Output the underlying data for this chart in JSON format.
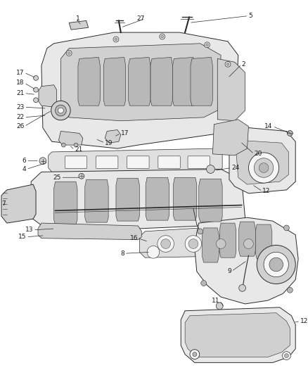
{
  "bg_color": "#ffffff",
  "fig_width": 4.38,
  "fig_height": 5.33,
  "dpi": 100,
  "line_color": "#2a2a2a",
  "text_color": "#1a1a1a",
  "font_size": 6.5,
  "fill_light": "#e8e8e8",
  "fill_mid": "#d0d0d0",
  "fill_dark": "#b8b8b8",
  "fill_white": "#f5f5f5"
}
